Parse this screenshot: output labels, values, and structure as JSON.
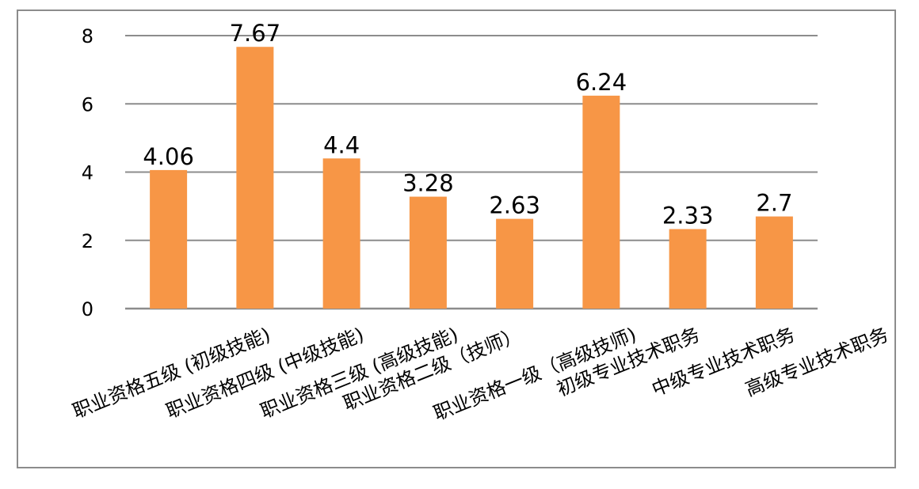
{
  "chart_data": {
    "type": "bar",
    "categories": [
      "职业资格五级 (初级技能)",
      "职业资格四级 (中级技能)",
      "职业资格三级 (高级技能)",
      "职业资格二级（技师）",
      "职业资格一级（高级技师)",
      "初级专业技术职务",
      "中级专业技术职务",
      "高级专业技术职务"
    ],
    "values": [
      4.06,
      7.67,
      4.4,
      3.28,
      2.63,
      6.24,
      2.33,
      2.7
    ],
    "value_labels": [
      "4.06",
      "7.67",
      "4.4",
      "3.28",
      "2.63",
      "6.24",
      "2.33",
      "2.7"
    ],
    "ylim": [
      0,
      8
    ],
    "yticks": [
      "0",
      "2",
      "4",
      "6",
      "8"
    ],
    "grid": true,
    "bar_color": "#F79646",
    "grid_color": "#8c8c8c",
    "title": "",
    "xlabel": "",
    "ylabel": ""
  }
}
